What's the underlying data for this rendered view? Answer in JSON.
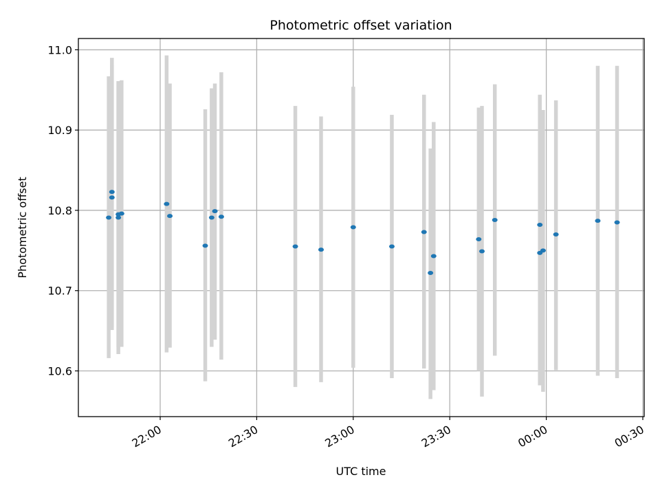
{
  "chart_data": {
    "type": "scatter",
    "title": "Photometric offset variation",
    "xlabel": "UTC time",
    "ylabel": "Photometric offset",
    "grid": true,
    "error_color": "#d3d3d3",
    "point_color": "#1f77b4",
    "x_ticks": [
      "22:00",
      "22:30",
      "23:00",
      "23:30",
      "00:00",
      "00:30"
    ],
    "y_ticks": [
      "10.6",
      "10.7",
      "10.8",
      "10.9",
      "11.0"
    ],
    "ylim": [
      10.545,
      11.0145
    ],
    "points": [
      {
        "t": "21:44",
        "y": 10.791,
        "lo": 10.616,
        "hi": 10.967
      },
      {
        "t": "21:45",
        "y": 10.823,
        "lo": 10.655,
        "hi": 10.99
      },
      {
        "t": "21:45",
        "y": 10.816,
        "lo": 10.651,
        "hi": 10.981
      },
      {
        "t": "21:47",
        "y": 10.791,
        "lo": 10.621,
        "hi": 10.961
      },
      {
        "t": "21:47",
        "y": 10.795,
        "lo": 10.63,
        "hi": 10.961
      },
      {
        "t": "21:48",
        "y": 10.796,
        "lo": 10.63,
        "hi": 10.962
      },
      {
        "t": "22:02",
        "y": 10.808,
        "lo": 10.623,
        "hi": 10.993
      },
      {
        "t": "22:03",
        "y": 10.793,
        "lo": 10.629,
        "hi": 10.958
      },
      {
        "t": "22:14",
        "y": 10.756,
        "lo": 10.587,
        "hi": 10.926
      },
      {
        "t": "22:16",
        "y": 10.791,
        "lo": 10.63,
        "hi": 10.952
      },
      {
        "t": "22:17",
        "y": 10.799,
        "lo": 10.639,
        "hi": 10.958
      },
      {
        "t": "22:19",
        "y": 10.792,
        "lo": 10.614,
        "hi": 10.972
      },
      {
        "t": "22:42",
        "y": 10.755,
        "lo": 10.58,
        "hi": 10.93
      },
      {
        "t": "22:50",
        "y": 10.751,
        "lo": 10.586,
        "hi": 10.917
      },
      {
        "t": "23:00",
        "y": 10.779,
        "lo": 10.604,
        "hi": 10.954
      },
      {
        "t": "23:12",
        "y": 10.755,
        "lo": 10.591,
        "hi": 10.919
      },
      {
        "t": "23:22",
        "y": 10.773,
        "lo": 10.603,
        "hi": 10.944
      },
      {
        "t": "23:24",
        "y": 10.722,
        "lo": 10.565,
        "hi": 10.877
      },
      {
        "t": "23:25",
        "y": 10.743,
        "lo": 10.576,
        "hi": 10.91
      },
      {
        "t": "23:39",
        "y": 10.764,
        "lo": 10.6,
        "hi": 10.928
      },
      {
        "t": "23:40",
        "y": 10.749,
        "lo": 10.568,
        "hi": 10.93
      },
      {
        "t": "23:44",
        "y": 10.788,
        "lo": 10.619,
        "hi": 10.957
      },
      {
        "t": "23:58",
        "y": 10.782,
        "lo": 10.619,
        "hi": 10.944
      },
      {
        "t": "23:58",
        "y": 10.747,
        "lo": 10.582,
        "hi": 10.912
      },
      {
        "t": "23:59",
        "y": 10.75,
        "lo": 10.574,
        "hi": 10.925
      },
      {
        "t": "00:03",
        "y": 10.77,
        "lo": 10.601,
        "hi": 10.937
      },
      {
        "t": "00:16",
        "y": 10.787,
        "lo": 10.594,
        "hi": 10.98
      },
      {
        "t": "00:22",
        "y": 10.785,
        "lo": 10.591,
        "hi": 10.98
      }
    ]
  }
}
